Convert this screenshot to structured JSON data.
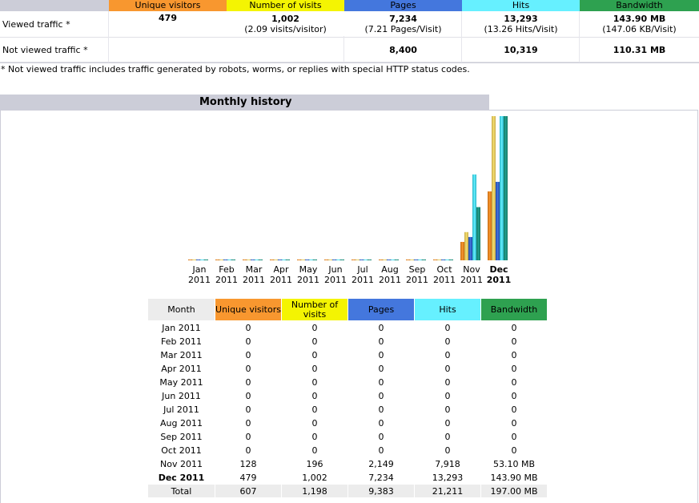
{
  "colors": {
    "unique_visitors": "#f8972f",
    "visits": "#f4f402",
    "pages": "#4477dd",
    "hits": "#66f0ff",
    "bandwidth": "#2ea150",
    "header_gray": "#cccdd8"
  },
  "summary": {
    "headers": {
      "unique_visitors": "Unique visitors",
      "visits": "Number of visits",
      "pages": "Pages",
      "hits": "Hits",
      "bandwidth": "Bandwidth"
    },
    "viewed": {
      "label": "Viewed traffic *",
      "unique_visitors": "479",
      "visits": "1,002",
      "visits_sub": "(2.09 visits/visitor)",
      "pages": "7,234",
      "pages_sub": "(7.21 Pages/Visit)",
      "hits": "13,293",
      "hits_sub": "(13.26 Hits/Visit)",
      "bandwidth": "143.90 MB",
      "bandwidth_sub": "(147.06 KB/Visit)"
    },
    "not_viewed": {
      "label": "Not viewed traffic *",
      "pages": "8,400",
      "hits": "10,319",
      "bandwidth": "110.31 MB"
    },
    "note": "* Not viewed traffic includes traffic generated by robots, worms, or replies with special HTTP status codes."
  },
  "monthly_history": {
    "title": "Monthly history",
    "table_headers": {
      "month": "Month",
      "unique_visitors": "Unique visitors",
      "visits": "Number of visits",
      "pages": "Pages",
      "hits": "Hits",
      "bandwidth": "Bandwidth"
    },
    "rows": [
      {
        "month": "Jan 2011",
        "unique_visitors": "0",
        "visits": "0",
        "pages": "0",
        "hits": "0",
        "bandwidth": "0"
      },
      {
        "month": "Feb 2011",
        "unique_visitors": "0",
        "visits": "0",
        "pages": "0",
        "hits": "0",
        "bandwidth": "0"
      },
      {
        "month": "Mar 2011",
        "unique_visitors": "0",
        "visits": "0",
        "pages": "0",
        "hits": "0",
        "bandwidth": "0"
      },
      {
        "month": "Apr 2011",
        "unique_visitors": "0",
        "visits": "0",
        "pages": "0",
        "hits": "0",
        "bandwidth": "0"
      },
      {
        "month": "May 2011",
        "unique_visitors": "0",
        "visits": "0",
        "pages": "0",
        "hits": "0",
        "bandwidth": "0"
      },
      {
        "month": "Jun 2011",
        "unique_visitors": "0",
        "visits": "0",
        "pages": "0",
        "hits": "0",
        "bandwidth": "0"
      },
      {
        "month": "Jul 2011",
        "unique_visitors": "0",
        "visits": "0",
        "pages": "0",
        "hits": "0",
        "bandwidth": "0"
      },
      {
        "month": "Aug 2011",
        "unique_visitors": "0",
        "visits": "0",
        "pages": "0",
        "hits": "0",
        "bandwidth": "0"
      },
      {
        "month": "Sep 2011",
        "unique_visitors": "0",
        "visits": "0",
        "pages": "0",
        "hits": "0",
        "bandwidth": "0"
      },
      {
        "month": "Oct 2011",
        "unique_visitors": "0",
        "visits": "0",
        "pages": "0",
        "hits": "0",
        "bandwidth": "0"
      },
      {
        "month": "Nov 2011",
        "unique_visitors": "128",
        "visits": "196",
        "pages": "2,149",
        "hits": "7,918",
        "bandwidth": "53.10 MB"
      },
      {
        "month": "Dec 2011",
        "unique_visitors": "479",
        "visits": "1,002",
        "pages": "7,234",
        "hits": "13,293",
        "bandwidth": "143.90 MB",
        "current": true
      }
    ],
    "total": {
      "label": "Total",
      "unique_visitors": "607",
      "visits": "1,198",
      "pages": "9,383",
      "hits": "21,211",
      "bandwidth": "197.00 MB"
    }
  },
  "chart_data": {
    "type": "bar",
    "title": "Monthly history",
    "categories": [
      "Jan 2011",
      "Feb 2011",
      "Mar 2011",
      "Apr 2011",
      "May 2011",
      "Jun 2011",
      "Jul 2011",
      "Aug 2011",
      "Sep 2011",
      "Oct 2011",
      "Nov 2011",
      "Dec 2011"
    ],
    "month_labels": [
      "Jan",
      "Feb",
      "Mar",
      "Apr",
      "May",
      "Jun",
      "Jul",
      "Aug",
      "Sep",
      "Oct",
      "Nov",
      "Dec"
    ],
    "year_label": "2011",
    "highlight": "Dec 2011",
    "groups": [
      {
        "scale_max": 1002,
        "series": [
          {
            "name": "Unique visitors",
            "values": [
              0,
              0,
              0,
              0,
              0,
              0,
              0,
              0,
              0,
              0,
              128,
              479
            ]
          },
          {
            "name": "Number of visits",
            "values": [
              0,
              0,
              0,
              0,
              0,
              0,
              0,
              0,
              0,
              0,
              196,
              1002
            ]
          }
        ]
      },
      {
        "scale_max": 13293,
        "series": [
          {
            "name": "Pages",
            "values": [
              0,
              0,
              0,
              0,
              0,
              0,
              0,
              0,
              0,
              0,
              2149,
              7234
            ]
          },
          {
            "name": "Hits",
            "values": [
              0,
              0,
              0,
              0,
              0,
              0,
              0,
              0,
              0,
              0,
              7918,
              13293
            ]
          }
        ]
      },
      {
        "scale_max": 143.9,
        "series": [
          {
            "name": "Bandwidth",
            "values": [
              0,
              0,
              0,
              0,
              0,
              0,
              0,
              0,
              0,
              0,
              53.1,
              143.9
            ]
          }
        ]
      }
    ]
  }
}
